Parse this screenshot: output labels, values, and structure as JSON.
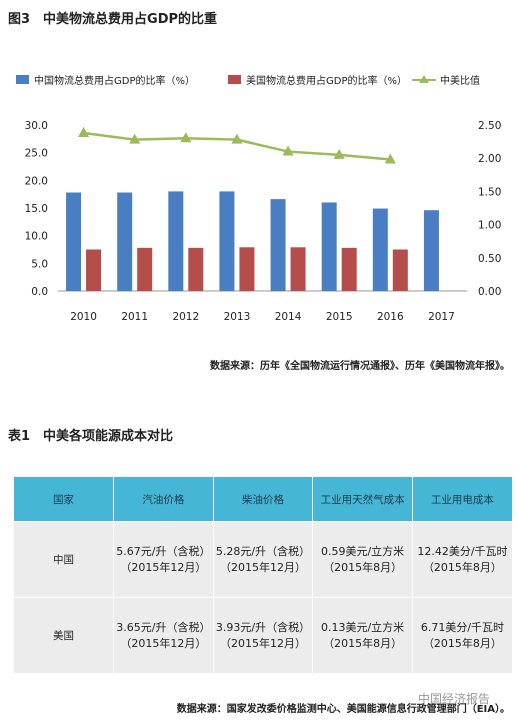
{
  "figure": {
    "title": "图3　中美物流总费用占GDP的比重",
    "source": "数据来源：历年《全国物流运行情况通报》、历年《美国物流年报》。"
  },
  "chart_data": {
    "type": "bar",
    "categories": [
      "2010",
      "2011",
      "2012",
      "2013",
      "2014",
      "2015",
      "2016",
      "2017"
    ],
    "series": [
      {
        "name": "中国物流总费用占GDP的比率（%）",
        "type": "bar",
        "axis": "left",
        "color": "#4a7ec2",
        "values": [
          17.8,
          17.8,
          18.0,
          18.0,
          16.6,
          16.0,
          14.9,
          14.6
        ]
      },
      {
        "name": "美国物流总费用占GDP的比率（%）",
        "type": "bar",
        "axis": "left",
        "color": "#b54d4a",
        "values": [
          7.5,
          7.8,
          7.8,
          7.9,
          7.9,
          7.8,
          7.5,
          null
        ]
      },
      {
        "name": "中美比值",
        "type": "line",
        "axis": "right",
        "color": "#9bbb59",
        "values": [
          2.38,
          2.28,
          2.3,
          2.28,
          2.1,
          2.05,
          1.98,
          null
        ]
      }
    ],
    "y_left_ticks": [
      "0.0",
      "5.0",
      "10.0",
      "15.0",
      "20.0",
      "25.0",
      "30.0"
    ],
    "y_right_ticks": [
      "0.00",
      "0.50",
      "1.00",
      "1.50",
      "2.00",
      "2.50"
    ],
    "ylim_left": [
      0,
      30
    ],
    "ylim_right": [
      0,
      2.5
    ],
    "legend_position": "top",
    "grid": false
  },
  "table": {
    "title": "表1　中美各项能源成本对比",
    "headers": [
      "国家",
      "汽油价格",
      "柴油价格",
      "工业用天然气成本",
      "工业用电成本"
    ],
    "rows": [
      {
        "country": "中国",
        "cells": [
          {
            "value": "5.67元/升（含税）",
            "date": "（2015年12月）"
          },
          {
            "value": "5.28元/升（含税）",
            "date": "（2015年12月）"
          },
          {
            "value": "0.59美元/立方米",
            "date": "（2015年8月）"
          },
          {
            "value": "12.42美分/千瓦时",
            "date": "（2015年8月）"
          }
        ]
      },
      {
        "country": "美国",
        "cells": [
          {
            "value": "3.65元/升（含税）",
            "date": "（2015年12月）"
          },
          {
            "value": "3.93元/升（含税）",
            "date": "（2015年12月）"
          },
          {
            "value": "0.13美元/立方米",
            "date": "（2015年8月）"
          },
          {
            "value": "6.71美分/千瓦时",
            "date": "（2015年8月）"
          }
        ]
      }
    ],
    "source": "数据来源：国家发改委价格监测中心、美国能源信息行政管理部门（EIA）。"
  },
  "watermark": "中国经济报告"
}
